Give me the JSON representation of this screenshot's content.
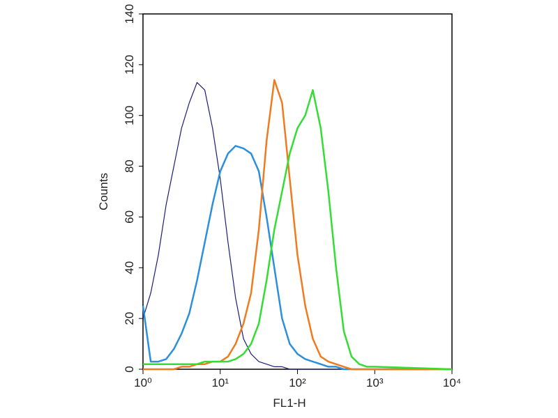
{
  "chart_data": {
    "type": "line",
    "x_label": "FL1-H",
    "y_label": "Counts",
    "x_log": true,
    "xlim": [
      1,
      10000
    ],
    "xticks": [
      {
        "value": 1,
        "label": "10⁰"
      },
      {
        "value": 10,
        "label": "10¹"
      },
      {
        "value": 100,
        "label": "10²"
      },
      {
        "value": 1000,
        "label": "10³"
      },
      {
        "value": 10000,
        "label": "10⁴"
      }
    ],
    "ylim": [
      0,
      140
    ],
    "yticks": [
      0,
      20,
      40,
      60,
      80,
      100,
      120,
      140
    ],
    "grid": false,
    "x": [
      1,
      1.26,
      1.58,
      2,
      2.51,
      3.16,
      3.98,
      5.01,
      6.31,
      7.94,
      10,
      12.6,
      15.8,
      20,
      25.1,
      31.6,
      39.8,
      50.1,
      63.1,
      79.4,
      100,
      126,
      158,
      200,
      251,
      316,
      398,
      501,
      631,
      794,
      1000,
      10000
    ],
    "series": [
      {
        "color": "#1c1c78",
        "width": 1.2,
        "values": [
          20,
          30,
          45,
          65,
          80,
          95,
          105,
          113,
          110,
          95,
          75,
          50,
          28,
          12,
          6,
          3,
          2,
          1,
          1,
          0,
          0,
          0,
          0,
          0,
          0,
          0,
          0,
          0,
          0,
          0,
          0,
          0
        ]
      },
      {
        "color": "#2b8fdc",
        "width": 2.5,
        "values": [
          25,
          3,
          3,
          4,
          8,
          14,
          22,
          35,
          50,
          65,
          78,
          85,
          88,
          87,
          85,
          78,
          60,
          40,
          20,
          10,
          6,
          4,
          3,
          2,
          1,
          1,
          0,
          0,
          0,
          0,
          0,
          0
        ]
      },
      {
        "color": "#f07a20",
        "width": 2.5,
        "values": [
          0,
          0,
          0,
          0,
          0,
          1,
          1,
          2,
          2,
          3,
          3,
          5,
          10,
          18,
          30,
          55,
          90,
          114,
          105,
          75,
          45,
          25,
          12,
          5,
          3,
          2,
          1,
          0,
          0,
          0,
          0,
          0
        ]
      },
      {
        "color": "#33dd33",
        "width": 2.5,
        "values": [
          2,
          2,
          2,
          2,
          2,
          2,
          2,
          2,
          3,
          3,
          3,
          3,
          4,
          6,
          10,
          18,
          35,
          55,
          70,
          85,
          95,
          100,
          110,
          95,
          70,
          40,
          15,
          5,
          2,
          1,
          1,
          0
        ]
      }
    ]
  }
}
